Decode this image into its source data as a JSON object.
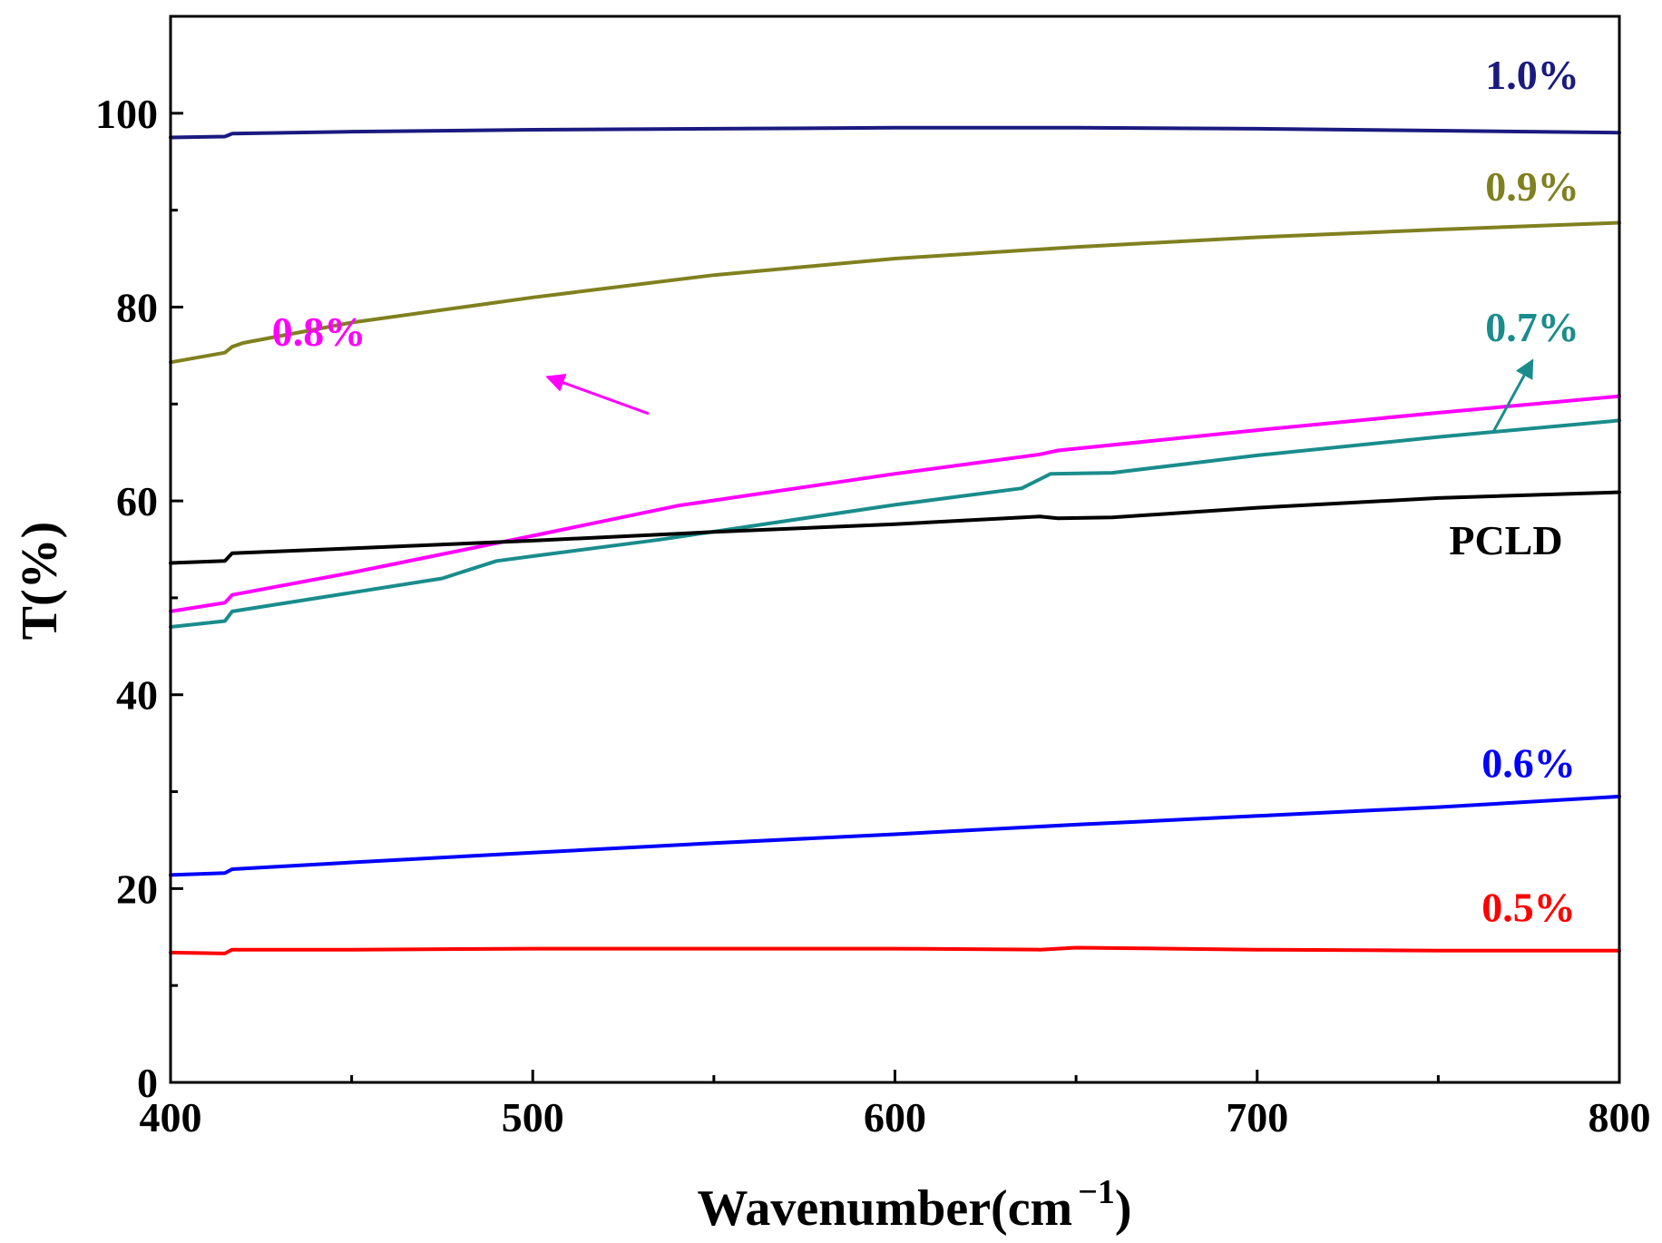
{
  "chart_data": {
    "type": "line",
    "title": "",
    "xlabel": "Wavenumber(cm",
    "xlabel_sup": "−1",
    "xlabel_close": ")",
    "ylabel": "T(%)",
    "xlim": [
      400,
      800
    ],
    "ylim": [
      0,
      110
    ],
    "xticks": [
      400,
      500,
      600,
      700,
      800
    ],
    "yticks": [
      0,
      20,
      40,
      60,
      80,
      100
    ],
    "xtick_labels": [
      "400",
      "500",
      "600",
      "700",
      "800"
    ],
    "ytick_labels": [
      "0",
      "20",
      "40",
      "60",
      "80",
      "100"
    ],
    "grid": false,
    "series": [
      {
        "name": "1.0%",
        "color": "#1a1a80",
        "x": [
          400,
          415,
          417,
          450,
          500,
          550,
          600,
          650,
          700,
          750,
          800
        ],
        "y": [
          97.5,
          97.6,
          97.9,
          98.1,
          98.3,
          98.4,
          98.5,
          98.5,
          98.4,
          98.2,
          98.0
        ]
      },
      {
        "name": "0.9%",
        "color": "#808020",
        "x": [
          400,
          415,
          417,
          420,
          450,
          500,
          550,
          600,
          650,
          700,
          750,
          800
        ],
        "y": [
          74.3,
          75.3,
          75.9,
          76.3,
          78.4,
          81.0,
          83.3,
          85.0,
          86.2,
          87.2,
          88.0,
          88.7
        ]
      },
      {
        "name": "0.8%",
        "color": "#ff00ff",
        "x": [
          400,
          415,
          417,
          450,
          500,
          540,
          600,
          640,
          645,
          700,
          750,
          800
        ],
        "y": [
          48.6,
          49.5,
          50.3,
          52.6,
          56.4,
          59.5,
          62.8,
          64.8,
          65.2,
          67.3,
          69.1,
          70.8
        ]
      },
      {
        "name": "0.7%",
        "color": "#1a8c8c",
        "x": [
          400,
          415,
          417,
          475,
          490,
          500,
          535,
          600,
          635,
          643,
          660,
          700,
          750,
          800
        ],
        "y": [
          47.0,
          47.6,
          48.6,
          52.0,
          53.8,
          54.3,
          56.0,
          59.6,
          61.3,
          62.8,
          62.9,
          64.7,
          66.6,
          68.3
        ]
      },
      {
        "name": "PCLD",
        "color": "#000000",
        "x": [
          400,
          415,
          417,
          450,
          500,
          550,
          600,
          640,
          645,
          660,
          700,
          750,
          800
        ],
        "y": [
          53.6,
          53.8,
          54.6,
          55.1,
          55.9,
          56.8,
          57.6,
          58.4,
          58.2,
          58.3,
          59.3,
          60.3,
          60.9
        ]
      },
      {
        "name": "0.6%",
        "color": "#0000ff",
        "x": [
          400,
          415,
          417,
          450,
          500,
          550,
          600,
          650,
          700,
          750,
          800
        ],
        "y": [
          21.4,
          21.6,
          22.0,
          22.7,
          23.7,
          24.7,
          25.6,
          26.6,
          27.5,
          28.4,
          29.5
        ]
      },
      {
        "name": "0.5%",
        "color": "#ff0000",
        "x": [
          400,
          415,
          417,
          450,
          500,
          550,
          600,
          640,
          650,
          700,
          750,
          800
        ],
        "y": [
          13.4,
          13.3,
          13.7,
          13.7,
          13.8,
          13.8,
          13.8,
          13.7,
          13.9,
          13.7,
          13.6,
          13.6
        ]
      }
    ],
    "annotations": [
      {
        "text": "1.0%",
        "color": "#1a1a80",
        "x": 763,
        "y": 102.5,
        "anchor": "start"
      },
      {
        "text": "0.9%",
        "color": "#808020",
        "x": 763,
        "y": 91.0,
        "anchor": "start"
      },
      {
        "text": "0.8%",
        "color": "#ff00ff",
        "x": 428,
        "y": 76.0,
        "anchor": "start",
        "arrow": {
          "from": [
            532,
            69.0
          ],
          "to": [
            504,
            72.8
          ]
        }
      },
      {
        "text": "0.7%",
        "color": "#1a8c8c",
        "x": 763,
        "y": 76.5,
        "anchor": "start",
        "arrow": {
          "from": [
            765,
            67.0
          ],
          "to": [
            776,
            74.5
          ]
        }
      },
      {
        "text": "PCLD",
        "color": "#000000",
        "x": 753,
        "y": 54.5,
        "anchor": "start"
      },
      {
        "text": "0.6%",
        "color": "#0000ff",
        "x": 762,
        "y": 31.5,
        "anchor": "start"
      },
      {
        "text": "0.5%",
        "color": "#ff0000",
        "x": 762,
        "y": 16.6,
        "anchor": "start"
      }
    ]
  }
}
